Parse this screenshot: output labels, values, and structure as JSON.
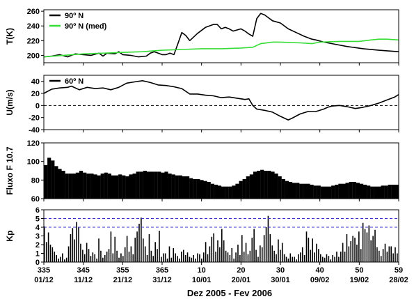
{
  "chart_data": {
    "xlabel": "Dez 2005 - Fev 2006",
    "x_ticks": [
      {
        "day": 335,
        "label": "335",
        "date": "01/12"
      },
      {
        "day": 345,
        "label": "345",
        "date": "11/12"
      },
      {
        "day": 355,
        "label": "355",
        "date": "21/12"
      },
      {
        "day": 365,
        "label": "365",
        "date": "31/12"
      },
      {
        "day": 375,
        "label": "10",
        "date": "10/01"
      },
      {
        "day": 385,
        "label": "20",
        "date": "20/01"
      },
      {
        "day": 395,
        "label": "30",
        "date": "30/01"
      },
      {
        "day": 405,
        "label": "40",
        "date": "09/02"
      },
      {
        "day": 415,
        "label": "50",
        "date": "19/02"
      },
      {
        "day": 425,
        "label": "59",
        "date": "28/02"
      }
    ],
    "xlim": [
      335,
      425
    ],
    "panels": [
      {
        "id": "temperature",
        "type": "line",
        "ylabel": "T(K)",
        "ylim": [
          190,
          262
        ],
        "yticks": [
          200,
          220,
          240,
          260
        ],
        "series": [
          {
            "name": "90º N",
            "color": "#000000",
            "points": [
              [
                335,
                198
              ],
              [
                337,
                199
              ],
              [
                339,
                201
              ],
              [
                341,
                198
              ],
              [
                343,
                202
              ],
              [
                345,
                201
              ],
              [
                347,
                200
              ],
              [
                349,
                203
              ],
              [
                350,
                199
              ],
              [
                351,
                203
              ],
              [
                353,
                202
              ],
              [
                354,
                205
              ],
              [
                355,
                201
              ],
              [
                357,
                200
              ],
              [
                359,
                198
              ],
              [
                361,
                199
              ],
              [
                362,
                203
              ],
              [
                363,
                205
              ],
              [
                364,
                203
              ],
              [
                365,
                201
              ],
              [
                366,
                201
              ],
              [
                367,
                203
              ],
              [
                368,
                201
              ],
              [
                369,
                216
              ],
              [
                370,
                231
              ],
              [
                371,
                227
              ],
              [
                372,
                220
              ],
              [
                374,
                230
              ],
              [
                376,
                238
              ],
              [
                378,
                242
              ],
              [
                379,
                242
              ],
              [
                380,
                236
              ],
              [
                381,
                238
              ],
              [
                382,
                236
              ],
              [
                383,
                233
              ],
              [
                385,
                236
              ],
              [
                386,
                233
              ],
              [
                387,
                229
              ],
              [
                388,
                226
              ],
              [
                389,
                250
              ],
              [
                390,
                257
              ],
              [
                391,
                255
              ],
              [
                392,
                251
              ],
              [
                393,
                247
              ],
              [
                395,
                244
              ],
              [
                397,
                236
              ],
              [
                399,
                231
              ],
              [
                401,
                226
              ],
              [
                403,
                222
              ],
              [
                404,
                221
              ],
              [
                406,
                218
              ],
              [
                409,
                215
              ],
              [
                412,
                212
              ],
              [
                416,
                209
              ],
              [
                420,
                207
              ],
              [
                425,
                205
              ]
            ]
          },
          {
            "name": "90º N (med)",
            "color": "#33dd33",
            "points": [
              [
                335,
                198
              ],
              [
                340,
                200
              ],
              [
                345,
                202
              ],
              [
                350,
                203
              ],
              [
                355,
                204
              ],
              [
                360,
                205
              ],
              [
                365,
                207
              ],
              [
                370,
                208
              ],
              [
                375,
                209
              ],
              [
                380,
                209
              ],
              [
                385,
                210
              ],
              [
                388,
                211
              ],
              [
                390,
                216
              ],
              [
                393,
                218
              ],
              [
                395,
                218
              ],
              [
                400,
                217
              ],
              [
                403,
                216
              ],
              [
                405,
                218
              ],
              [
                410,
                219
              ],
              [
                415,
                219
              ],
              [
                418,
                221
              ],
              [
                420,
                222
              ],
              [
                422,
                222
              ],
              [
                425,
                221
              ]
            ]
          }
        ]
      },
      {
        "id": "wind",
        "type": "line",
        "ylabel": "U(m/s)",
        "ylim": [
          -40,
          50
        ],
        "yticks": [
          -40,
          -20,
          0,
          20,
          40
        ],
        "reference_line": 0,
        "series": [
          {
            "name": "60º N",
            "color": "#000000",
            "points": [
              [
                335,
                20
              ],
              [
                337,
                27
              ],
              [
                339,
                29
              ],
              [
                341,
                30
              ],
              [
                342,
                32
              ],
              [
                344,
                26
              ],
              [
                346,
                30
              ],
              [
                348,
                28
              ],
              [
                350,
                29
              ],
              [
                352,
                26
              ],
              [
                354,
                30
              ],
              [
                356,
                37
              ],
              [
                358,
                39
              ],
              [
                360,
                41
              ],
              [
                362,
                38
              ],
              [
                364,
                34
              ],
              [
                366,
                33
              ],
              [
                368,
                31
              ],
              [
                370,
                28
              ],
              [
                372,
                19
              ],
              [
                374,
                19
              ],
              [
                376,
                17
              ],
              [
                378,
                16
              ],
              [
                380,
                13
              ],
              [
                382,
                14
              ],
              [
                384,
                12
              ],
              [
                386,
                10
              ],
              [
                387,
                11
              ],
              [
                388,
                0
              ],
              [
                389,
                -6
              ],
              [
                391,
                -8
              ],
              [
                393,
                -11
              ],
              [
                395,
                -18
              ],
              [
                397,
                -24
              ],
              [
                398,
                -21
              ],
              [
                400,
                -14
              ],
              [
                402,
                -10
              ],
              [
                404,
                -10
              ],
              [
                406,
                -6
              ],
              [
                407,
                -3
              ],
              [
                408,
                -1
              ],
              [
                410,
                0
              ],
              [
                412,
                -2
              ],
              [
                414,
                -5
              ],
              [
                416,
                -3
              ],
              [
                418,
                0
              ],
              [
                420,
                4
              ],
              [
                422,
                9
              ],
              [
                424,
                14
              ],
              [
                425,
                18
              ]
            ]
          }
        ]
      },
      {
        "id": "flux",
        "type": "bar",
        "ylabel": "Fluxo F 10.7",
        "ylim": [
          60,
          120
        ],
        "yticks": [
          60,
          80,
          100,
          120
        ],
        "values": [
          96,
          104,
          101,
          95,
          92,
          90,
          87,
          87,
          87,
          88,
          90,
          88,
          87,
          87,
          86,
          85,
          87,
          88,
          87,
          85,
          85,
          86,
          85,
          84,
          86,
          87,
          89,
          89,
          90,
          89,
          89,
          89,
          89,
          88,
          89,
          87,
          86,
          85,
          85,
          84,
          84,
          82,
          81,
          81,
          80,
          79,
          78,
          76,
          75,
          74,
          73,
          73,
          73,
          74,
          76,
          79,
          81,
          84,
          86,
          89,
          90,
          91,
          90,
          90,
          89,
          87,
          84,
          81,
          79,
          78,
          77,
          77,
          76,
          76,
          76,
          75,
          74,
          74,
          73,
          73,
          73,
          74,
          75,
          76,
          76,
          77,
          78,
          78,
          77,
          76,
          75,
          74,
          73,
          73,
          73,
          74,
          74,
          75,
          75,
          75
        ]
      },
      {
        "id": "kp",
        "type": "bar",
        "ylabel": "Kp",
        "ylim": [
          0,
          6
        ],
        "yticks": [
          0,
          1,
          2,
          3,
          4,
          5,
          6
        ],
        "reference_lines": [
          4,
          5
        ],
        "reference_color": "#3333cc",
        "values": [
          4.1,
          2.3,
          3.4,
          2.0,
          1.7,
          1.2,
          0.8,
          0.4,
          0.6,
          1.0,
          0.3,
          0.5,
          1.8,
          3.2,
          3.9,
          2.6,
          4.6,
          4.0,
          2.1,
          1.4,
          0.9,
          2.2,
          1.5,
          0.7,
          1.1,
          0.9,
          0.4,
          2.7,
          1.3,
          0.5,
          0.8,
          1.2,
          1.5,
          3.5,
          1.0,
          2.9,
          1.3,
          0.5,
          1.0,
          0.7,
          1.7,
          3.0,
          1.2,
          1.8,
          0.9,
          2.8,
          3.5,
          4.4,
          5.1,
          2.7,
          1.8,
          0.8,
          3.2,
          1.3,
          0.7,
          2.3,
          1.5,
          3.6,
          0.6,
          1.0,
          1.0,
          0.4,
          1.8,
          0.5,
          1.6,
          1.0,
          0.7,
          0.4,
          1.2,
          1.4,
          0.8,
          1.1,
          0.6,
          0.5,
          0.8,
          0.4,
          1.0,
          0.9,
          0.4,
          1.1,
          2.3,
          0.9,
          1.8,
          2.9,
          3.3,
          1.2,
          2.5,
          1.7,
          3.8,
          2.5,
          1.3,
          1.1,
          0.8,
          1.6,
          0.4,
          1.1,
          2.0,
          0.8,
          3.1,
          1.2,
          2.2,
          0.9,
          1.3,
          2.8,
          3.8,
          1.4,
          0.6,
          1.9,
          1.7,
          3.1,
          4.0,
          5.3,
          3.2,
          1.9,
          1.3,
          0.9,
          2.6,
          1.4,
          2.2,
          0.9,
          0.6,
          0.4,
          1.0,
          0.6,
          0.6,
          0.3,
          0.9,
          1.1,
          1.7,
          0.8,
          3.5,
          2.8,
          1.4,
          2.7,
          1.1,
          2.1,
          1.5,
          0.9,
          0.6,
          0.5,
          0.9,
          0.7,
          0.3,
          0.8,
          0.6,
          1.2,
          0.6,
          1.2,
          2.2,
          1.2,
          3.2,
          1.8,
          2.4,
          3.0,
          2.8,
          2.0,
          3.5,
          1.5,
          4.5,
          3.8,
          3.4,
          4.2,
          2.5,
          3.0,
          3.7,
          1.7,
          1.3,
          0.7,
          1.5,
          2.1,
          1.2,
          1.8,
          1.8,
          1.0,
          1.7,
          1.0
        ]
      }
    ]
  }
}
